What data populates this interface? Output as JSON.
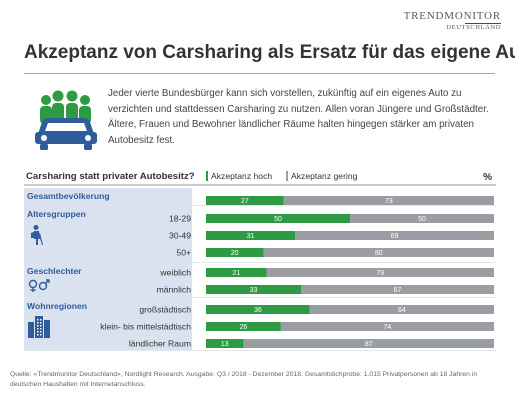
{
  "logo": {
    "main": "TRENDMONITOR",
    "sub": "DEUTSCHLAND"
  },
  "title": "Akzeptanz  von Carsharing als Ersatz für das eigene Auto",
  "intro": "Jeder vierte Bundesbürger kann sich vorstellen, zukünftig auf ein eigenes Auto zu verzichten und stattdessen Carsharing  zu nutzen. Allen voran Jüngere und Großstädter. Ältere, Frauen und Bewohner ländlicher Räume halten hingegen stärker am privaten Autobesitz fest.",
  "colors": {
    "high": "#2f9a44",
    "low": "#9a9ea3",
    "band": "#d9e2ee",
    "group_text": "#2f5d9a",
    "red": "#b21e1e"
  },
  "chart_data": {
    "type": "bar",
    "title": "Carsharing statt privater Autobesitz?",
    "unit_label": "%",
    "stacked": true,
    "orientation": "horizontal",
    "xlim": [
      0,
      100
    ],
    "legend": [
      "Akzeptanz hoch",
      "Akzeptanz gering"
    ],
    "categories": [
      "Gesamtbevölkerung",
      "18-29",
      "30-49",
      "50+",
      "weiblich",
      "männlich",
      "großstädtisch",
      "klein- bis mittelstädtisch",
      "ländlicher Raum"
    ],
    "groups": [
      {
        "label": "Gesamtbevölkerung",
        "icon": "",
        "rows": [
          0
        ]
      },
      {
        "label": "Altersgruppen",
        "icon": "hiker-icon",
        "rows": [
          1,
          2,
          3
        ]
      },
      {
        "label": "Geschlechter",
        "icon": "gender-icon",
        "rows": [
          4,
          5
        ]
      },
      {
        "label": "Wohnregionen",
        "icon": "buildings-icon",
        "rows": [
          6,
          7,
          8
        ]
      }
    ],
    "series": [
      {
        "name": "Akzeptanz hoch",
        "values": [
          27,
          50,
          31,
          20,
          21,
          33,
          36,
          26,
          13
        ]
      },
      {
        "name": "Akzeptanz gering",
        "values": [
          73,
          50,
          69,
          80,
          79,
          67,
          64,
          74,
          87
        ]
      }
    ]
  },
  "source": "Quelle: «Trendmonitor Deutschland», Nordlight Research. Ausgabe: Q3 / 2018 - Dezember 2018. Gesamtstichprobe: 1.015 Privatpersonen ab 18 Jahren in deutschen Haushalten mit Internetanschluss."
}
